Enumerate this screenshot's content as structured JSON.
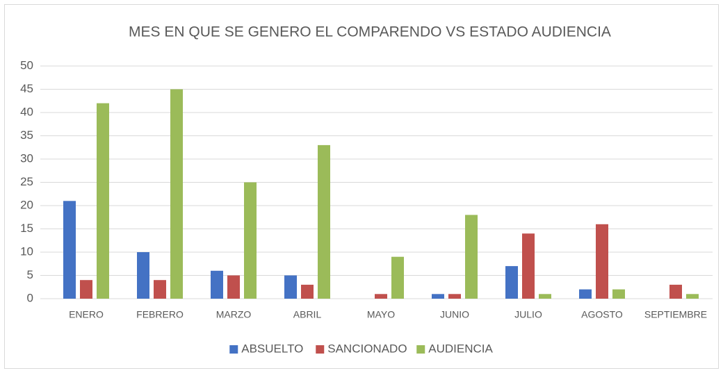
{
  "chart_data": {
    "type": "bar",
    "title": "MES EN QUE SE GENERO EL COMPARENDO VS ESTADO AUDIENCIA",
    "categories": [
      "ENERO",
      "FEBRERO",
      "MARZO",
      "ABRIL",
      "MAYO",
      "JUNIO",
      "JULIO",
      "AGOSTO",
      "SEPTIEMBRE"
    ],
    "series": [
      {
        "name": "ABSUELTO",
        "color": "#4472c4",
        "values": [
          21,
          10,
          6,
          5,
          0,
          1,
          7,
          2,
          0
        ]
      },
      {
        "name": "SANCIONADO",
        "color": "#c0504d",
        "values": [
          4,
          4,
          5,
          3,
          1,
          1,
          14,
          16,
          3
        ]
      },
      {
        "name": "AUDIENCIA",
        "color": "#9bbb59",
        "values": [
          42,
          45,
          25,
          33,
          9,
          18,
          1,
          2,
          1
        ]
      }
    ],
    "ylim": [
      0,
      50
    ],
    "yticks": [
      0,
      5,
      10,
      15,
      20,
      25,
      30,
      35,
      40,
      45,
      50
    ],
    "grid": true,
    "legend": "bottom"
  }
}
